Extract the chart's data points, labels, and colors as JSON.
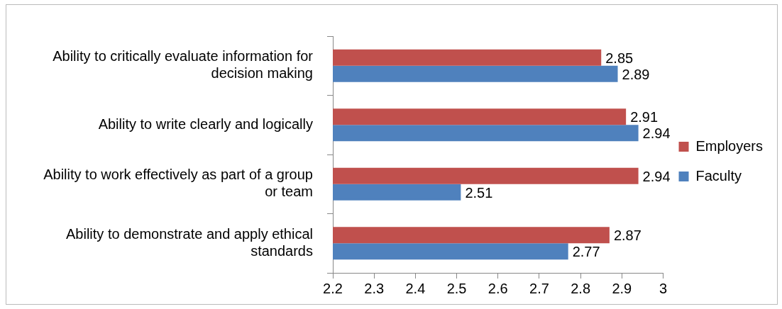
{
  "chart_data": {
    "type": "bar",
    "orientation": "horizontal",
    "categories": [
      "Ability to critically evaluate information for decision making",
      "Ability to write clearly and logically",
      "Ability to work effectively as part of a group or team",
      "Ability to demonstrate and apply ethical standards"
    ],
    "series": [
      {
        "name": "Employers",
        "color": "#c0504d",
        "values": [
          2.85,
          2.91,
          2.94,
          2.87
        ]
      },
      {
        "name": "Faculty",
        "color": "#4f81bd",
        "values": [
          2.89,
          2.94,
          2.51,
          2.77
        ]
      }
    ],
    "xlim": [
      2.2,
      3
    ],
    "xticks": [
      2.2,
      2.3,
      2.4,
      2.5,
      2.6,
      2.7,
      2.8,
      2.9,
      3
    ],
    "data_labels": true,
    "grid": false,
    "legend": "right"
  }
}
